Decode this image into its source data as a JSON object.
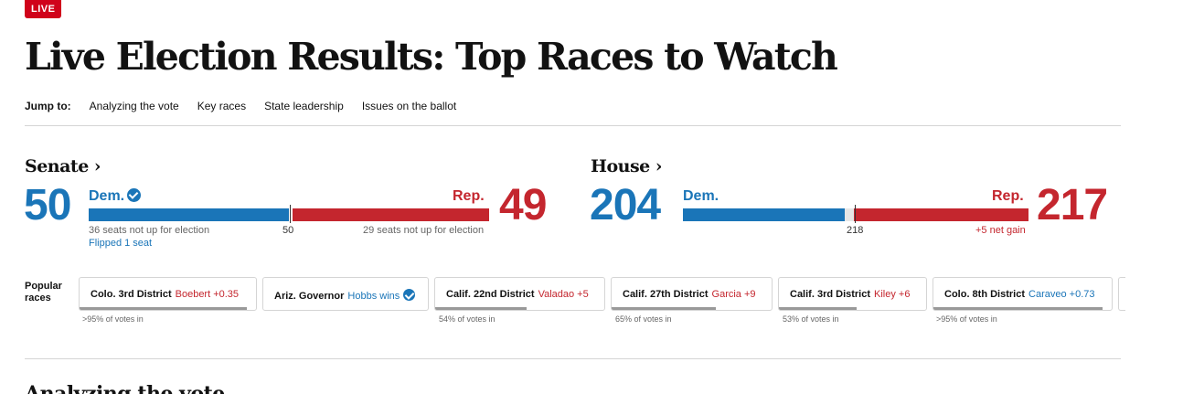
{
  "badge": "LIVE",
  "headline": "Live Election Results: Top Races to Watch",
  "jump": {
    "label": "Jump to:",
    "links": [
      "Analyzing the vote",
      "Key races",
      "State leadership",
      "Issues on the ballot"
    ]
  },
  "senate": {
    "title": "Senate ›",
    "dem_count": "50",
    "rep_count": "49",
    "dem_label": "Dem.",
    "rep_label": "Rep.",
    "majority": "50",
    "dem_note": "36 seats not up for election",
    "dem_flip": "Flipped 1 seat",
    "rep_note": "29 seats not up for election"
  },
  "house": {
    "title": "House ›",
    "dem_count": "204",
    "rep_count": "217",
    "dem_label": "Dem.",
    "rep_label": "Rep.",
    "majority": "218",
    "rep_note": "+5 net gain"
  },
  "popular": {
    "label": "Popular races",
    "races": [
      {
        "name": "Colo. 3rd District",
        "result": "Boebert +0.35",
        "party": "rep",
        "votes_in": ">95% of votes in",
        "progress": 0.95
      },
      {
        "name": "Ariz. Governor",
        "result": "Hobbs wins",
        "party": "dem",
        "won": true,
        "votes_in": "",
        "progress": 0
      },
      {
        "name": "Calif. 22nd District",
        "result": "Valadao +5",
        "party": "rep",
        "votes_in": "54% of votes in",
        "progress": 0.54
      },
      {
        "name": "Calif. 27th District",
        "result": "Garcia +9",
        "party": "rep",
        "votes_in": "65% of votes in",
        "progress": 0.65
      },
      {
        "name": "Calif. 3rd District",
        "result": "Kiley +6",
        "party": "rep",
        "votes_in": "53% of votes in",
        "progress": 0.53
      },
      {
        "name": "Colo. 8th District",
        "result": "Caraveo +0.73",
        "party": "dem",
        "votes_in": ">95% of votes in",
        "progress": 0.95
      }
    ]
  },
  "colors": {
    "dem": "#1a75b8",
    "rep": "#c4262e"
  },
  "next_section_title": "Analyzing the vote"
}
